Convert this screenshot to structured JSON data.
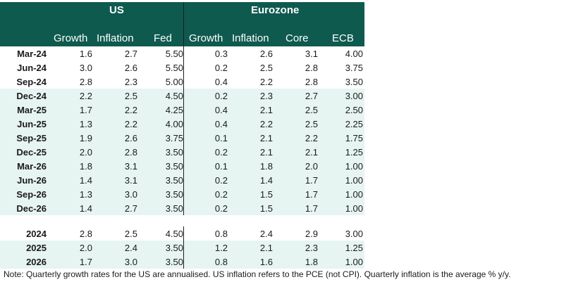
{
  "header": {
    "us_label": "US",
    "ez_label": "Eurozone",
    "columns": [
      "Growth",
      "Inflation",
      "Fed",
      "Growth",
      "Inflation",
      "Core",
      "ECB"
    ]
  },
  "quarterly_rows": [
    {
      "label": "Mar-24",
      "values": [
        "1.6",
        "2.7",
        "5.50",
        "0.3",
        "2.6",
        "3.1",
        "4.00"
      ],
      "shaded": false
    },
    {
      "label": "Jun-24",
      "values": [
        "3.0",
        "2.6",
        "5.50",
        "0.2",
        "2.5",
        "2.8",
        "3.75"
      ],
      "shaded": false
    },
    {
      "label": "Sep-24",
      "values": [
        "2.8",
        "2.3",
        "5.00",
        "0.4",
        "2.2",
        "2.8",
        "3.50"
      ],
      "shaded": false
    },
    {
      "label": "Dec-24",
      "values": [
        "2.2",
        "2.5",
        "4.50",
        "0.2",
        "2.3",
        "2.7",
        "3.00"
      ],
      "shaded": true
    },
    {
      "label": "Mar-25",
      "values": [
        "1.7",
        "2.2",
        "4.25",
        "0.4",
        "2.1",
        "2.5",
        "2.50"
      ],
      "shaded": true
    },
    {
      "label": "Jun-25",
      "values": [
        "1.3",
        "2.2",
        "4.00",
        "0.4",
        "2.2",
        "2.5",
        "2.25"
      ],
      "shaded": true
    },
    {
      "label": "Sep-25",
      "values": [
        "1.9",
        "2.6",
        "3.75",
        "0.1",
        "2.1",
        "2.2",
        "1.75"
      ],
      "shaded": true
    },
    {
      "label": "Dec-25",
      "values": [
        "2.0",
        "2.8",
        "3.50",
        "0.2",
        "2.1",
        "2.1",
        "1.25"
      ],
      "shaded": true
    },
    {
      "label": "Mar-26",
      "values": [
        "1.8",
        "3.1",
        "3.50",
        "0.1",
        "1.8",
        "2.0",
        "1.00"
      ],
      "shaded": true
    },
    {
      "label": "Jun-26",
      "values": [
        "1.4",
        "3.1",
        "3.50",
        "0.2",
        "1.4",
        "1.7",
        "1.00"
      ],
      "shaded": true
    },
    {
      "label": "Sep-26",
      "values": [
        "1.3",
        "3.0",
        "3.50",
        "0.2",
        "1.5",
        "1.7",
        "1.00"
      ],
      "shaded": true
    },
    {
      "label": "Dec-26",
      "values": [
        "1.4",
        "2.7",
        "3.50",
        "0.2",
        "1.5",
        "1.7",
        "1.00"
      ],
      "shaded": true
    }
  ],
  "annual_rows": [
    {
      "label": "2024",
      "values": [
        "2.8",
        "2.5",
        "4.50",
        "0.8",
        "2.4",
        "2.9",
        "3.00"
      ],
      "shaded": false
    },
    {
      "label": "2025",
      "values": [
        "2.0",
        "2.4",
        "3.50",
        "1.2",
        "2.1",
        "2.3",
        "1.25"
      ],
      "shaded": true
    },
    {
      "label": "2026",
      "values": [
        "1.7",
        "3.0",
        "3.50",
        "0.8",
        "1.6",
        "1.8",
        "1.00"
      ],
      "shaded": true
    }
  ],
  "note": "Note: Quarterly growth rates for the US are annualised. US inflation refers to the PCE (not CPI). Quarterly inflation is the average % y/y.",
  "colors": {
    "header_bg": "#0f5a4f",
    "shade": "#e6f4f2"
  }
}
